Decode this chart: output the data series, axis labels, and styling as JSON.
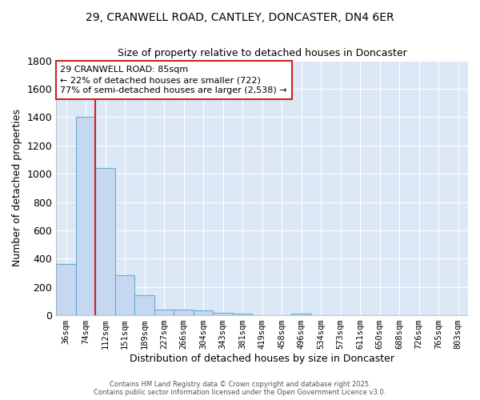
{
  "title_line1": "29, CRANWELL ROAD, CANTLEY, DONCASTER, DN4 6ER",
  "title_line2": "Size of property relative to detached houses in Doncaster",
  "xlabel": "Distribution of detached houses by size in Doncaster",
  "ylabel": "Number of detached properties",
  "categories": [
    "36sqm",
    "74sqm",
    "112sqm",
    "151sqm",
    "189sqm",
    "227sqm",
    "266sqm",
    "304sqm",
    "343sqm",
    "381sqm",
    "419sqm",
    "458sqm",
    "496sqm",
    "534sqm",
    "573sqm",
    "611sqm",
    "650sqm",
    "688sqm",
    "726sqm",
    "765sqm",
    "803sqm"
  ],
  "values": [
    360,
    1400,
    1040,
    285,
    140,
    42,
    42,
    32,
    18,
    12,
    0,
    0,
    12,
    0,
    0,
    0,
    0,
    0,
    0,
    0,
    0
  ],
  "bar_color": "#c5d8f0",
  "bar_edge_color": "#6aaad4",
  "fig_background_color": "#ffffff",
  "plot_background_color": "#dce8f5",
  "grid_color": "#ffffff",
  "vline_color": "#cc2222",
  "vline_x_index": 1,
  "annotation_text": "29 CRANWELL ROAD: 85sqm\n← 22% of detached houses are smaller (722)\n77% of semi-detached houses are larger (2,538) →",
  "annotation_box_facecolor": "#ffffff",
  "annotation_box_edgecolor": "#cc2222",
  "ylim": [
    0,
    1800
  ],
  "yticks": [
    0,
    200,
    400,
    600,
    800,
    1000,
    1200,
    1400,
    1600,
    1800
  ],
  "footer_line1": "Contains HM Land Registry data © Crown copyright and database right 2025.",
  "footer_line2": "Contains public sector information licensed under the Open Government Licence v3.0."
}
